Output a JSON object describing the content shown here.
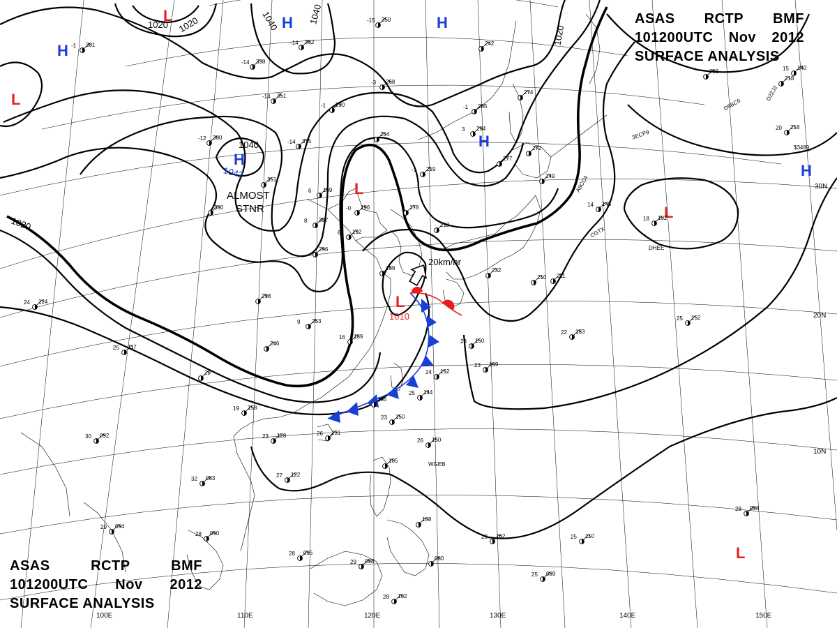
{
  "title": {
    "line1": [
      "ASAS",
      "RCTP",
      "BMF"
    ],
    "line2": [
      "101200UTC",
      "Nov",
      "2012"
    ],
    "line3": "SURFACE ANALYSIS"
  },
  "colors": {
    "high": "#1a3fd6",
    "low": "#e81e1e",
    "cold_front": "#1a3fd6",
    "warm_front": "#e81e1e",
    "isobar": "#000000"
  },
  "grid_labels": {
    "longitudes": [
      "110E",
      "120E",
      "130E",
      "140E",
      "150E"
    ],
    "latitudes": [
      "30N",
      "20N",
      "10N"
    ],
    "partial": "100E"
  },
  "pressure_centers": [
    {
      "type": "H",
      "label": "H"
    },
    {
      "type": "H",
      "label": "H"
    },
    {
      "type": "H",
      "label": "H"
    },
    {
      "type": "H",
      "label": "H"
    },
    {
      "type": "H",
      "label": "H"
    },
    {
      "type": "H",
      "label": "H"
    },
    {
      "type": "L",
      "label": "L"
    },
    {
      "type": "L",
      "label": "L"
    },
    {
      "type": "L",
      "label": "L"
    },
    {
      "type": "L",
      "label": "L"
    },
    {
      "type": "L",
      "label": "L"
    },
    {
      "type": "L",
      "label": "L"
    }
  ],
  "isobar_labels": [
    "1020",
    "1020",
    "1040",
    "1040",
    "1040",
    "1042",
    "1020",
    "1020",
    "1010"
  ],
  "annotations": {
    "almost_stationary": [
      "ALMOST",
      "STNR"
    ],
    "motion": "20km/hr"
  },
  "ship_callsigns": [
    "D5BC6",
    "D2ZJ2",
    "3ECP9",
    "A8CC4",
    "CGTX",
    "DHEE",
    "WGEB",
    "$3489"
  ],
  "stations": [
    {
      "t": "-1",
      "p": "301"
    },
    {
      "t": "-15",
      "p": "350"
    },
    {
      "t": "-14",
      "p": "362"
    },
    {
      "t": "-14",
      "p": "338"
    },
    {
      "t": "-14",
      "p": "351"
    },
    {
      "t": "-12",
      "p": "300"
    },
    {
      "t": "-14",
      "p": "375"
    },
    {
      "t": "-3",
      "p": "268"
    },
    {
      "t": "-1",
      "p": "290"
    },
    {
      "t": "-1",
      "p": "285"
    },
    {
      "t": "3",
      "p": "284"
    },
    {
      "t": "-1",
      "p": "219"
    },
    {
      "t": "-0",
      "p": "196"
    },
    {
      "t": "6",
      "p": "192"
    },
    {
      "t": "6",
      "p": "169"
    },
    {
      "t": "8",
      "p": "307"
    },
    {
      "t": "",
      "p": "296"
    },
    {
      "t": "",
      "p": "298"
    },
    {
      "t": "9",
      "p": "253"
    },
    {
      "t": "",
      "p": "246"
    },
    {
      "t": "16",
      "p": "189"
    },
    {
      "t": "",
      "p": "189"
    },
    {
      "t": "",
      "p": "178"
    },
    {
      "t": "",
      "p": "213"
    },
    {
      "t": "",
      "p": "204"
    },
    {
      "t": "23",
      "p": "150"
    },
    {
      "t": "24",
      "p": "152"
    },
    {
      "t": "23",
      "p": "169"
    },
    {
      "t": "25",
      "p": "144"
    },
    {
      "t": "",
      "p": "186"
    },
    {
      "t": "23",
      "p": "150"
    },
    {
      "t": "26",
      "p": "131"
    },
    {
      "t": "23",
      "p": "128"
    },
    {
      "t": "19",
      "p": "158"
    },
    {
      "t": "27",
      "p": "122"
    },
    {
      "t": "26",
      "p": "150"
    },
    {
      "t": "32",
      "p": "083"
    },
    {
      "t": "30",
      "p": "092"
    },
    {
      "t": "29",
      "p": "094"
    },
    {
      "t": "28",
      "p": "090"
    },
    {
      "t": "28",
      "p": "095"
    },
    {
      "t": "29",
      "p": "098"
    },
    {
      "t": "28",
      "p": "102"
    },
    {
      "t": "",
      "p": "105"
    },
    {
      "t": "",
      "p": "108"
    },
    {
      "t": "28",
      "p": "162"
    },
    {
      "t": "",
      "p": "080"
    },
    {
      "t": "25",
      "p": "110"
    },
    {
      "t": "25",
      "p": "089"
    },
    {
      "t": "28",
      "p": "098"
    },
    {
      "t": "22",
      "p": "183"
    },
    {
      "t": "25",
      "p": "152"
    },
    {
      "t": "18",
      "p": "102"
    },
    {
      "t": "14",
      "p": "145"
    },
    {
      "t": "",
      "p": "272"
    },
    {
      "t": "",
      "p": "274"
    },
    {
      "t": "",
      "p": "242"
    },
    {
      "t": "",
      "p": "277"
    },
    {
      "t": "",
      "p": "218"
    },
    {
      "t": "20",
      "p": "218"
    },
    {
      "t": "15",
      "p": "140"
    },
    {
      "t": "",
      "p": "210"
    },
    {
      "t": "24",
      "p": "124"
    },
    {
      "t": "25",
      "p": "117"
    },
    {
      "t": "",
      "p": "211"
    },
    {
      "t": "",
      "p": "249"
    },
    {
      "t": "",
      "p": "096"
    },
    {
      "t": "",
      "p": "232"
    },
    {
      "t": "",
      "p": "380"
    },
    {
      "t": "",
      "p": "351"
    },
    {
      "t": "",
      "p": "20"
    }
  ]
}
